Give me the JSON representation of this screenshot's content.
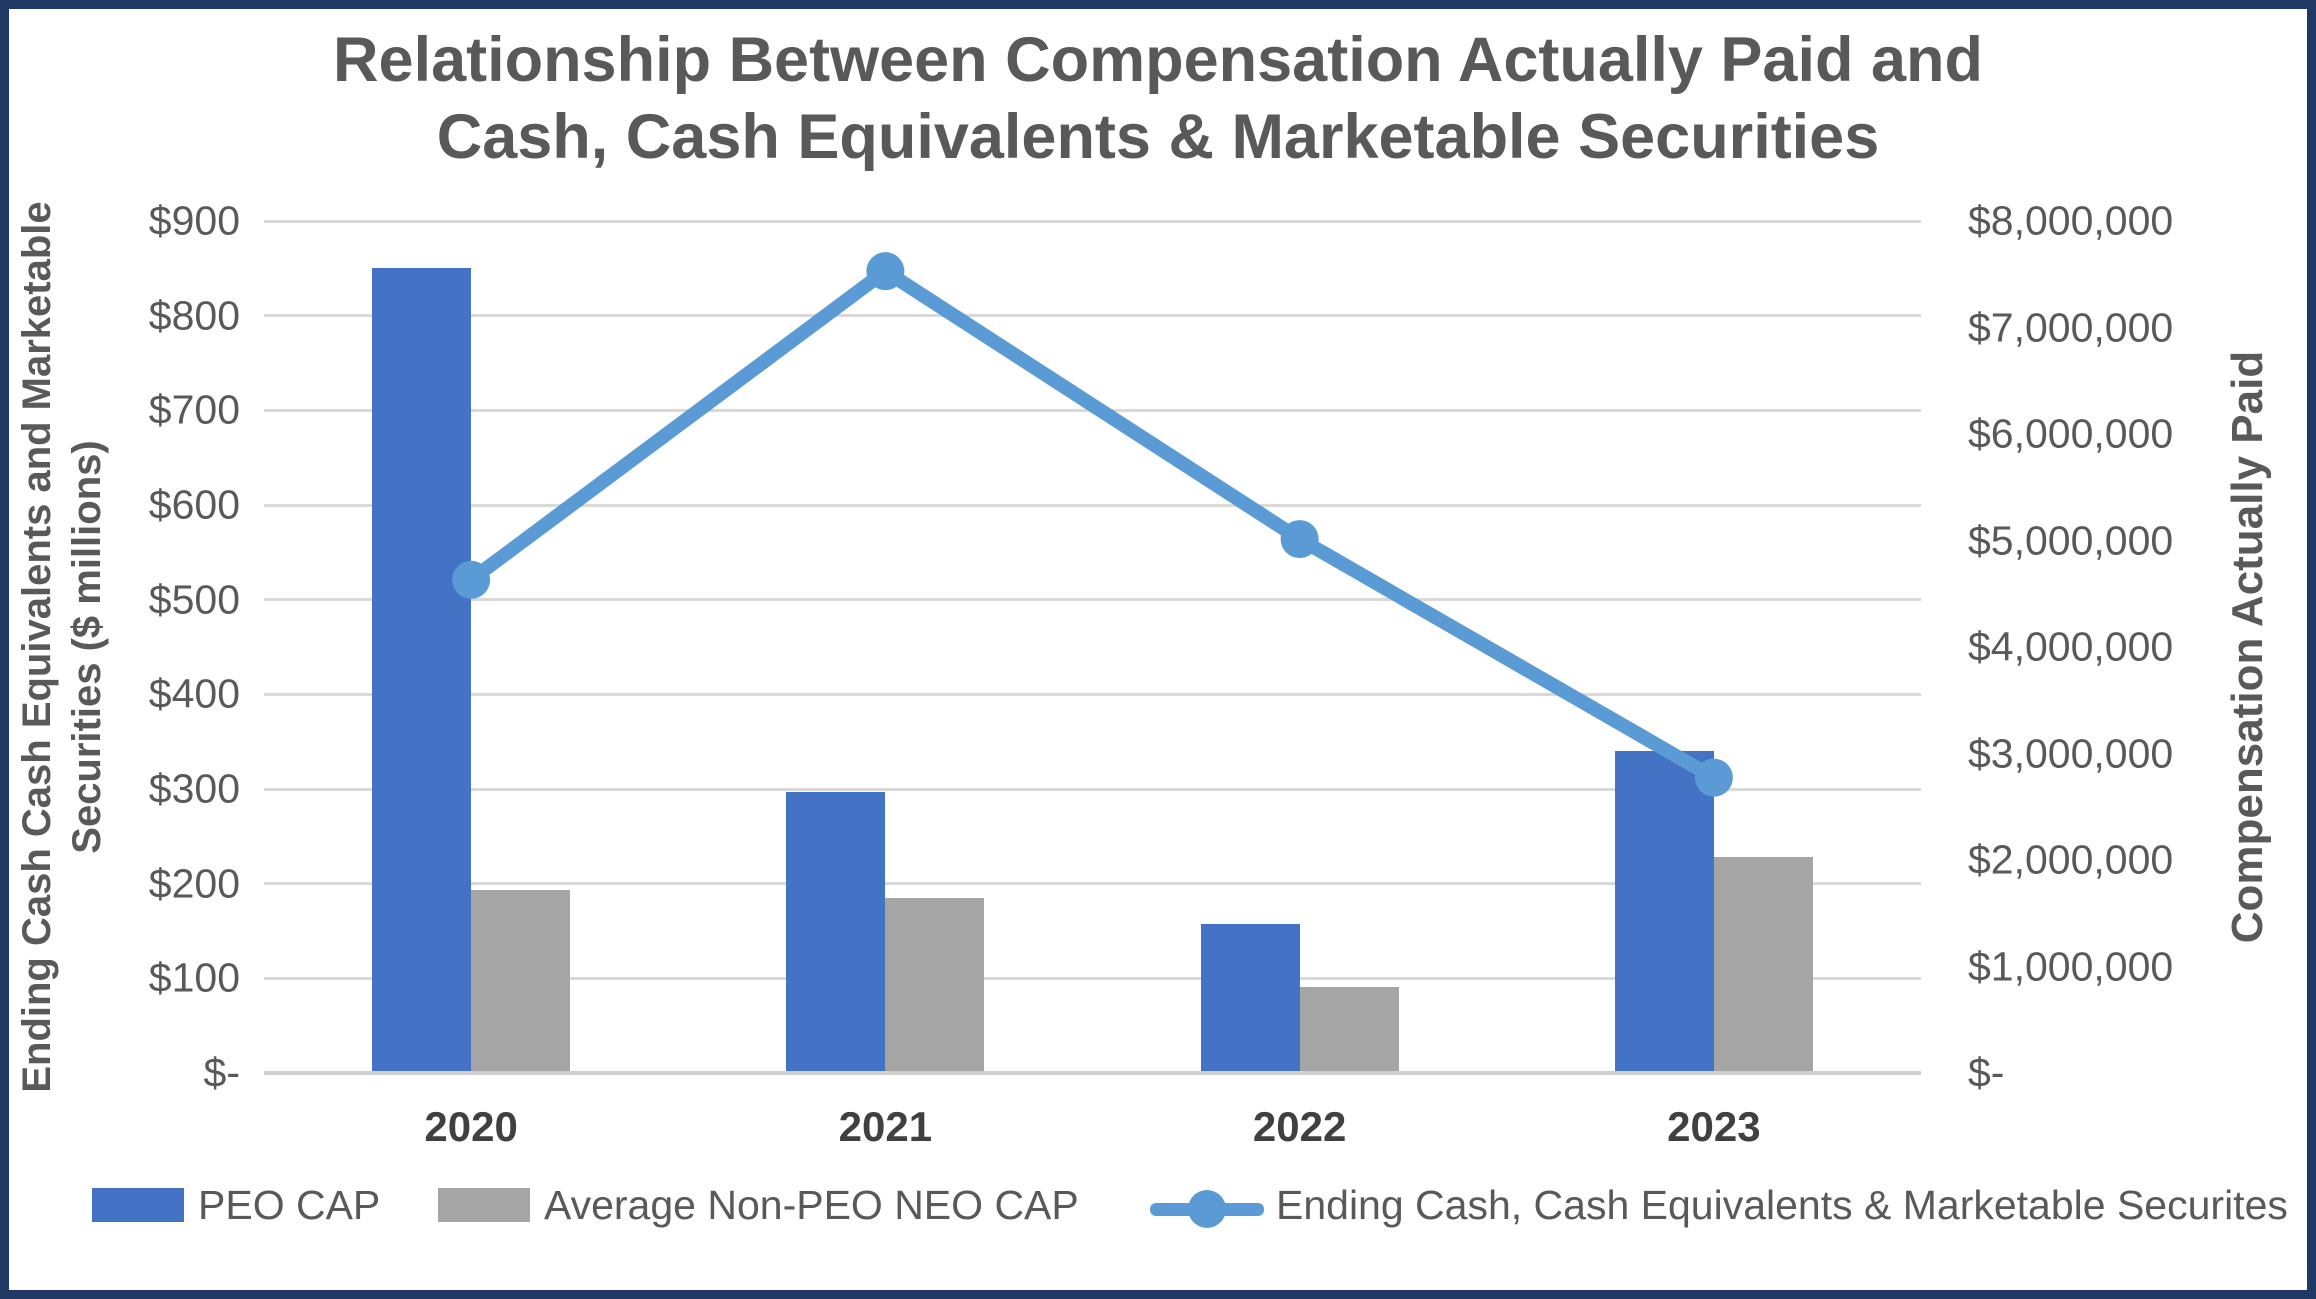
{
  "chart": {
    "title_line1": "Relationship Between Compensation Actually Paid and",
    "title_line2": "Cash, Cash Equivalents & Marketable Securities"
  },
  "left_axis": {
    "title_line1": "Ending Cash Cash Equivalents and Marketable",
    "title_line2": "Securities ($ millions)",
    "tick_labels": [
      "$900",
      "$800",
      "$700",
      "$600",
      "$500",
      "$400",
      "$300",
      "$200",
      "$100",
      "$-"
    ]
  },
  "right_axis": {
    "title": "Compensation Actually Paid",
    "tick_labels": [
      "$8,000,000",
      "$7,000,000",
      "$6,000,000",
      "$5,000,000",
      "$4,000,000",
      "$3,000,000",
      "$2,000,000",
      "$1,000,000",
      "$-"
    ]
  },
  "x_axis": {
    "categories": [
      "2020",
      "2021",
      "2022",
      "2023"
    ]
  },
  "legend": {
    "peo_cap": "PEO CAP",
    "neo_cap": "Average Non-PEO NEO CAP",
    "ending_cash": "Ending Cash, Cash Equivalents & Marketable Securites"
  },
  "colors": {
    "peo_bar": "#4472C4",
    "neo_bar": "#A5A5A5",
    "line": "#5B9BD5",
    "grid": "#D9D9D9",
    "text": "#595959",
    "border": "#1F3864"
  },
  "chart_data": {
    "type": "combo-bar-line",
    "title": "Relationship Between Compensation Actually Paid and Cash, Cash Equivalents & Marketable Securities",
    "categories": [
      "2020",
      "2021",
      "2022",
      "2023"
    ],
    "series": [
      {
        "name": "PEO CAP",
        "type": "bar",
        "axis": "right",
        "color": "#4472C4",
        "values": [
          7560000,
          2640000,
          1400000,
          3020000
        ]
      },
      {
        "name": "Average Non-PEO NEO CAP",
        "type": "bar",
        "axis": "right",
        "color": "#A5A5A5",
        "values": [
          1720000,
          1640000,
          810000,
          2030000
        ]
      },
      {
        "name": "Ending Cash, Cash Equivalents & Marketable Securites",
        "type": "line",
        "axis": "left",
        "color": "#5B9BD5",
        "values": [
          521,
          847,
          564,
          312
        ]
      }
    ],
    "left_ylabel": "Ending Cash Cash Equivalents and Marketable Securities ($ millions)",
    "right_ylabel": "Compensation Actually Paid",
    "left_ylim": [
      0,
      900
    ],
    "right_ylim": [
      0,
      8000000
    ],
    "grid": true,
    "legend_position": "bottom"
  }
}
